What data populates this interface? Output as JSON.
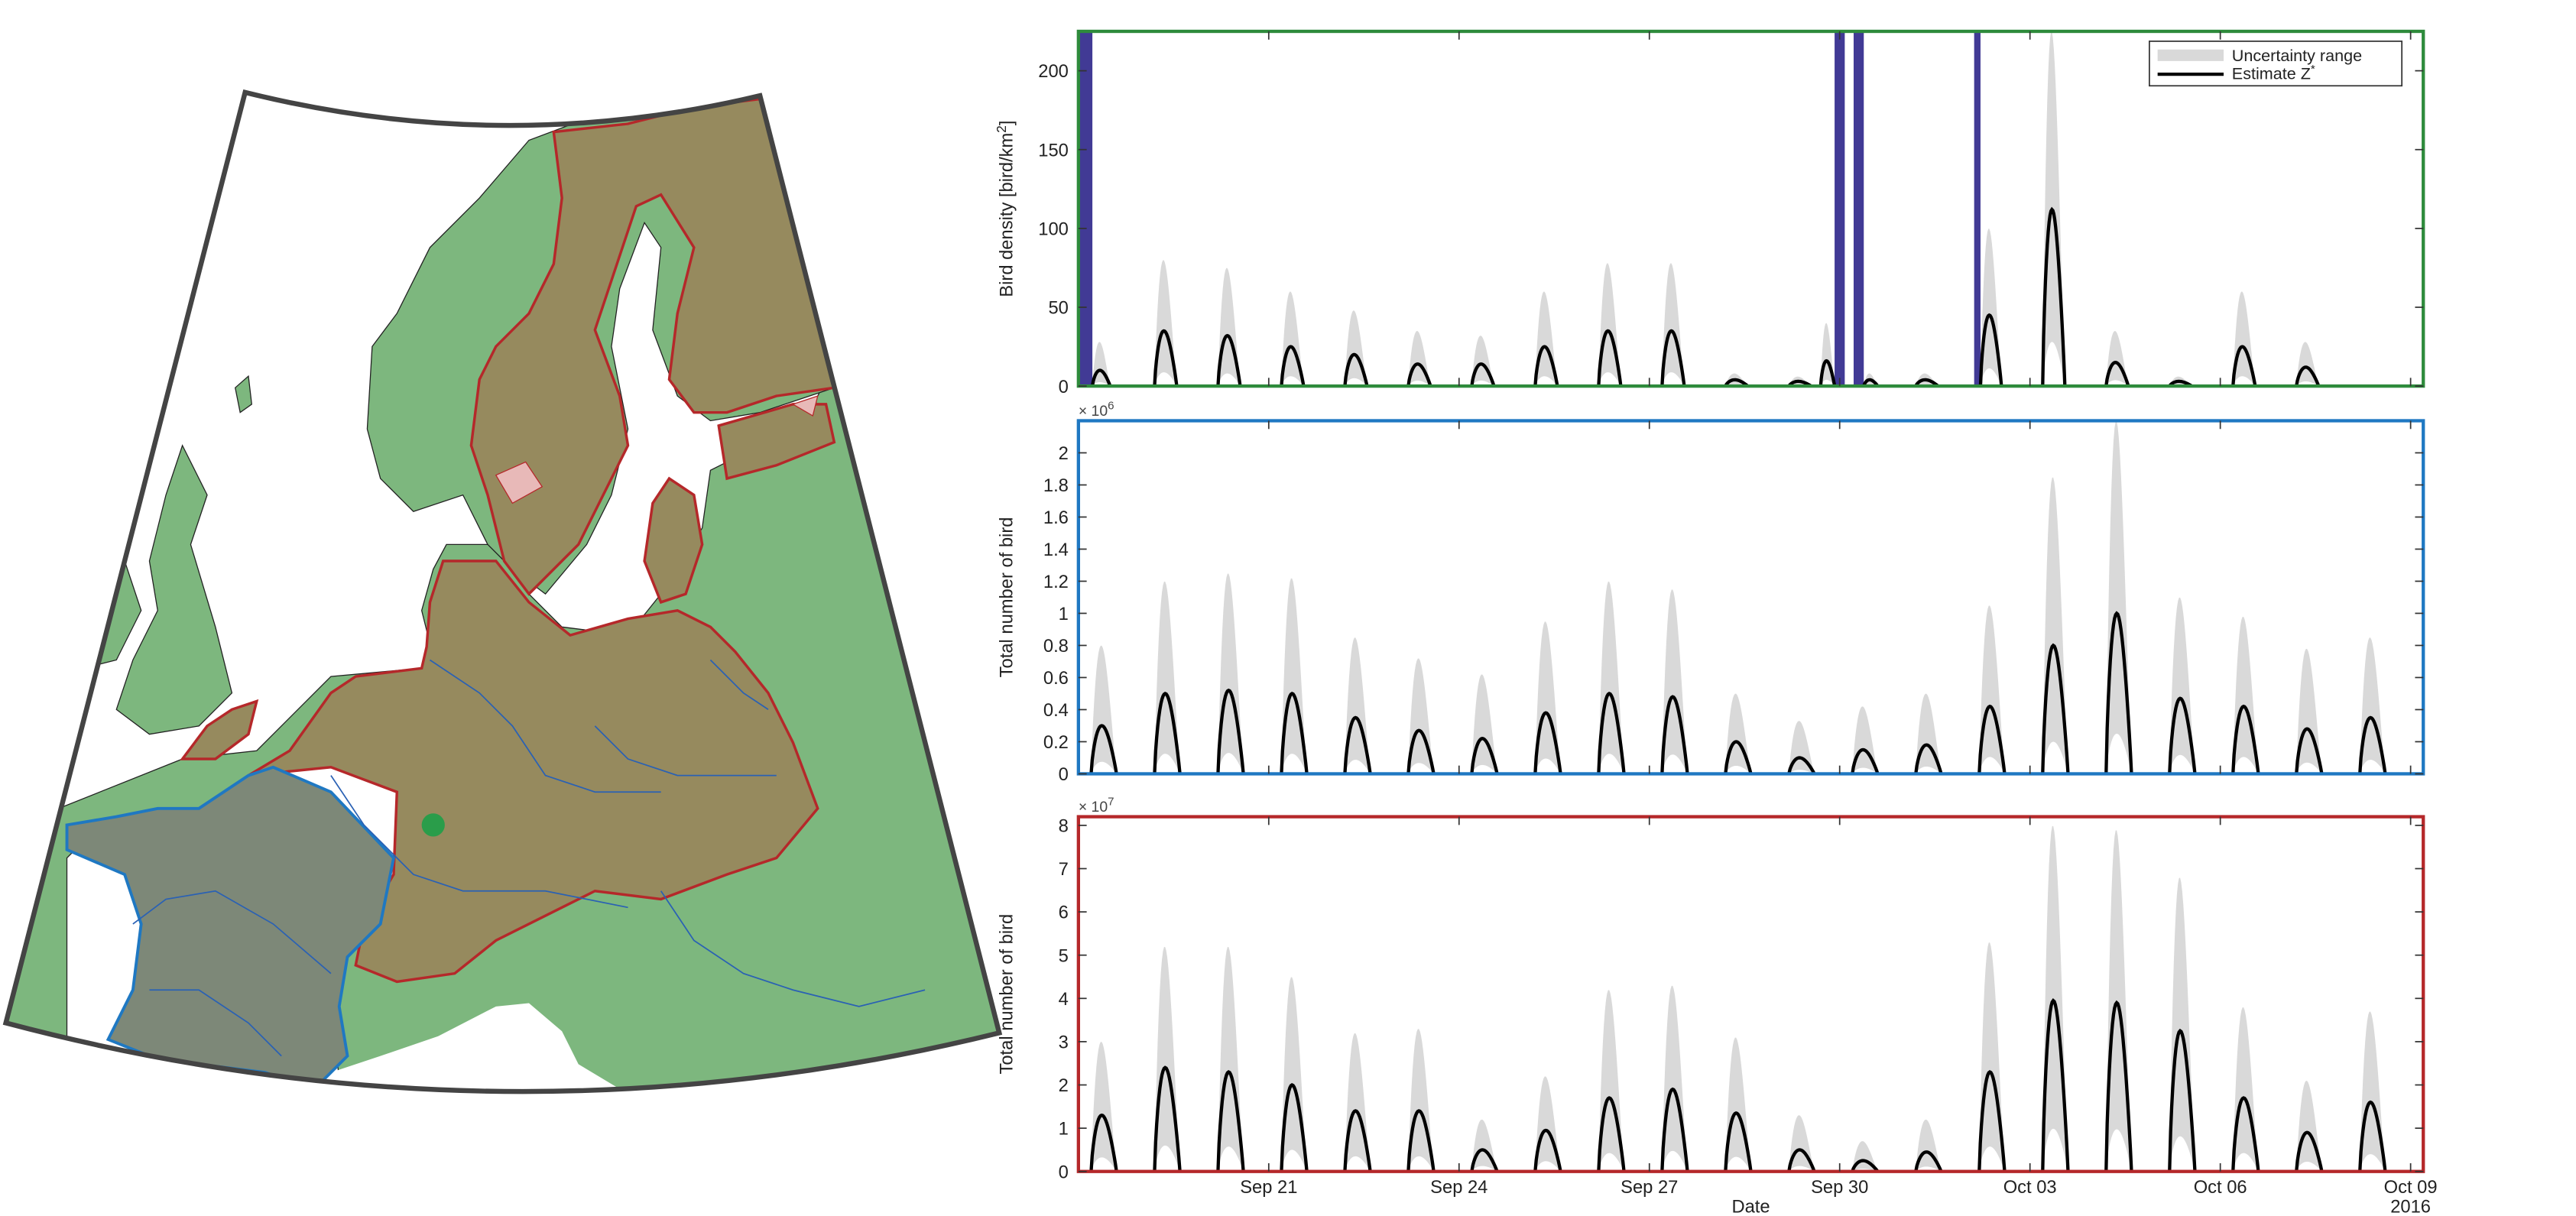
{
  "colors": {
    "land": "#7db77e",
    "domain_fill": "#968a5e",
    "domain_edge": "#b5282a",
    "france_fill": "#7d8878",
    "france_edge": "#1f78c2",
    "lakes": "#e8b9b8",
    "rivers": "#2a61b4",
    "radar_dot": "#2a9d4a",
    "frame": "#444444",
    "uncertainty": "#d9d9d9",
    "estimate": "#000000",
    "gap": "#413a95",
    "panel1_frame": "#2e8b3c",
    "panel2_frame": "#1f78c2",
    "panel3_frame": "#b5282a"
  },
  "map": {
    "regions": [
      "Europe land",
      "Study domain",
      "France",
      "Radar"
    ]
  },
  "chart_data": [
    {
      "type": "area",
      "ylabel": "Bird density [bird/km",
      "ylabel_sup": "2",
      "ylabel_end": "]",
      "ylim": [
        0,
        225
      ],
      "yticks": [
        0,
        50,
        100,
        150,
        200
      ],
      "ytick_labels": [
        "0",
        "50",
        "100",
        "150",
        "200"
      ],
      "exponent_label": "",
      "legend_placement": "top-right",
      "legend": {
        "uncertainty": "Uncertainty range",
        "estimate": "Estimate Z",
        "estimate_sup": "*"
      },
      "gaps": [
        [
          18.0,
          18.22
        ],
        [
          29.92,
          30.08
        ],
        [
          30.22,
          30.38
        ],
        [
          32.12,
          32.22
        ]
      ],
      "series": [
        {
          "values": [
            {
              "start": 18.22,
              "end": 18.5,
              "peak": 10,
              "upper": 28
            },
            {
              "start": 19.2,
              "end": 19.55,
              "peak": 35,
              "upper": 80
            },
            {
              "start": 20.2,
              "end": 20.55,
              "peak": 32,
              "upper": 75
            },
            {
              "start": 21.2,
              "end": 21.55,
              "peak": 25,
              "upper": 60
            },
            {
              "start": 22.2,
              "end": 22.55,
              "peak": 20,
              "upper": 48
            },
            {
              "start": 23.2,
              "end": 23.55,
              "peak": 14,
              "upper": 35
            },
            {
              "start": 24.2,
              "end": 24.55,
              "peak": 14,
              "upper": 32
            },
            {
              "start": 25.2,
              "end": 25.55,
              "peak": 25,
              "upper": 60
            },
            {
              "start": 26.2,
              "end": 26.55,
              "peak": 35,
              "upper": 78
            },
            {
              "start": 27.2,
              "end": 27.55,
              "peak": 35,
              "upper": 78
            },
            {
              "start": 28.2,
              "end": 28.55,
              "peak": 4,
              "upper": 8
            },
            {
              "start": 29.2,
              "end": 29.55,
              "peak": 3,
              "upper": 6
            },
            {
              "start": 29.7,
              "end": 29.92,
              "peak": 16,
              "upper": 40
            },
            {
              "start": 30.38,
              "end": 30.6,
              "peak": 4,
              "upper": 8
            },
            {
              "start": 31.2,
              "end": 31.55,
              "peak": 4,
              "upper": 8
            },
            {
              "start": 32.22,
              "end": 32.55,
              "peak": 45,
              "upper": 100
            },
            {
              "start": 33.2,
              "end": 33.55,
              "peak": 112,
              "upper": 225
            },
            {
              "start": 34.2,
              "end": 34.55,
              "peak": 15,
              "upper": 35
            },
            {
              "start": 35.2,
              "end": 35.55,
              "peak": 3,
              "upper": 6
            },
            {
              "start": 36.2,
              "end": 36.55,
              "peak": 25,
              "upper": 60
            },
            {
              "start": 37.2,
              "end": 37.55,
              "peak": 12,
              "upper": 28
            }
          ]
        }
      ]
    },
    {
      "type": "area",
      "ylabel": "Total number of bird",
      "ylabel_sup": "",
      "ylabel_end": "",
      "ylim": [
        0,
        2.2
      ],
      "yticks": [
        0,
        0.2,
        0.4,
        0.6,
        0.8,
        1,
        1.2,
        1.4,
        1.6,
        1.8,
        2
      ],
      "ytick_labels": [
        "0",
        "0.2",
        "0.4",
        "0.6",
        "0.8",
        "1",
        "1.2",
        "1.4",
        "1.6",
        "1.8",
        "2"
      ],
      "exponent_label": "× 10",
      "exponent_sup": "6",
      "series": [
        {
          "values": [
            {
              "start": 18.2,
              "end": 18.6,
              "peak": 0.3,
              "upper": 0.8
            },
            {
              "start": 19.2,
              "end": 19.6,
              "peak": 0.5,
              "upper": 1.2
            },
            {
              "start": 20.2,
              "end": 20.6,
              "peak": 0.52,
              "upper": 1.25
            },
            {
              "start": 21.2,
              "end": 21.6,
              "peak": 0.5,
              "upper": 1.22
            },
            {
              "start": 22.2,
              "end": 22.6,
              "peak": 0.35,
              "upper": 0.85
            },
            {
              "start": 23.2,
              "end": 23.6,
              "peak": 0.27,
              "upper": 0.72
            },
            {
              "start": 24.2,
              "end": 24.6,
              "peak": 0.22,
              "upper": 0.62
            },
            {
              "start": 25.2,
              "end": 25.6,
              "peak": 0.38,
              "upper": 0.95
            },
            {
              "start": 26.2,
              "end": 26.6,
              "peak": 0.5,
              "upper": 1.2
            },
            {
              "start": 27.2,
              "end": 27.6,
              "peak": 0.48,
              "upper": 1.15
            },
            {
              "start": 28.2,
              "end": 28.6,
              "peak": 0.2,
              "upper": 0.5
            },
            {
              "start": 29.2,
              "end": 29.6,
              "peak": 0.1,
              "upper": 0.33
            },
            {
              "start": 30.2,
              "end": 30.6,
              "peak": 0.15,
              "upper": 0.42
            },
            {
              "start": 31.2,
              "end": 31.6,
              "peak": 0.18,
              "upper": 0.5
            },
            {
              "start": 32.2,
              "end": 32.6,
              "peak": 0.42,
              "upper": 1.05
            },
            {
              "start": 33.2,
              "end": 33.6,
              "peak": 0.8,
              "upper": 1.85
            },
            {
              "start": 34.2,
              "end": 34.6,
              "peak": 1.0,
              "upper": 2.2
            },
            {
              "start": 35.2,
              "end": 35.6,
              "peak": 0.47,
              "upper": 1.1
            },
            {
              "start": 36.2,
              "end": 36.6,
              "peak": 0.42,
              "upper": 0.98
            },
            {
              "start": 37.2,
              "end": 37.6,
              "peak": 0.28,
              "upper": 0.78
            },
            {
              "start": 38.2,
              "end": 38.6,
              "peak": 0.35,
              "upper": 0.85
            }
          ]
        }
      ]
    },
    {
      "type": "area",
      "ylabel": "Total number of bird",
      "ylabel_sup": "",
      "ylabel_end": "",
      "ylim": [
        0,
        8.2
      ],
      "yticks": [
        0,
        1,
        2,
        3,
        4,
        5,
        6,
        7,
        8
      ],
      "ytick_labels": [
        "0",
        "1",
        "2",
        "3",
        "4",
        "5",
        "6",
        "7",
        "8"
      ],
      "exponent_label": "× 10",
      "exponent_sup": "7",
      "xlabel": "Date",
      "xlim": [
        18.0,
        39.2
      ],
      "xticks": [
        21,
        24,
        27,
        30,
        33,
        36,
        39
      ],
      "xtick_labels": [
        "Sep 21",
        "Sep 24",
        "Sep 27",
        "Sep 30",
        "Oct 03",
        "Oct 06",
        "Oct 09"
      ],
      "year_label": "2016",
      "series": [
        {
          "values": [
            {
              "start": 18.2,
              "end": 18.6,
              "peak": 1.3,
              "upper": 3.0
            },
            {
              "start": 19.2,
              "end": 19.6,
              "peak": 2.4,
              "upper": 5.2
            },
            {
              "start": 20.2,
              "end": 20.6,
              "peak": 2.3,
              "upper": 5.2
            },
            {
              "start": 21.2,
              "end": 21.6,
              "peak": 2.0,
              "upper": 4.5
            },
            {
              "start": 22.2,
              "end": 22.6,
              "peak": 1.4,
              "upper": 3.2
            },
            {
              "start": 23.2,
              "end": 23.6,
              "peak": 1.4,
              "upper": 3.3
            },
            {
              "start": 24.2,
              "end": 24.6,
              "peak": 0.5,
              "upper": 1.2
            },
            {
              "start": 25.2,
              "end": 25.6,
              "peak": 0.95,
              "upper": 2.2
            },
            {
              "start": 26.2,
              "end": 26.6,
              "peak": 1.7,
              "upper": 4.2
            },
            {
              "start": 27.2,
              "end": 27.6,
              "peak": 1.9,
              "upper": 4.3
            },
            {
              "start": 28.2,
              "end": 28.6,
              "peak": 1.35,
              "upper": 3.1
            },
            {
              "start": 29.2,
              "end": 29.6,
              "peak": 0.5,
              "upper": 1.3
            },
            {
              "start": 30.2,
              "end": 30.6,
              "peak": 0.25,
              "upper": 0.7
            },
            {
              "start": 31.2,
              "end": 31.6,
              "peak": 0.45,
              "upper": 1.2
            },
            {
              "start": 32.2,
              "end": 32.6,
              "peak": 2.3,
              "upper": 5.3
            },
            {
              "start": 33.2,
              "end": 33.6,
              "peak": 3.95,
              "upper": 8.0
            },
            {
              "start": 34.2,
              "end": 34.6,
              "peak": 3.9,
              "upper": 7.9
            },
            {
              "start": 35.2,
              "end": 35.6,
              "peak": 3.25,
              "upper": 6.8
            },
            {
              "start": 36.2,
              "end": 36.6,
              "peak": 1.7,
              "upper": 3.8
            },
            {
              "start": 37.2,
              "end": 37.6,
              "peak": 0.9,
              "upper": 2.1
            },
            {
              "start": 38.2,
              "end": 38.6,
              "peak": 1.6,
              "upper": 3.7
            }
          ]
        }
      ]
    }
  ]
}
